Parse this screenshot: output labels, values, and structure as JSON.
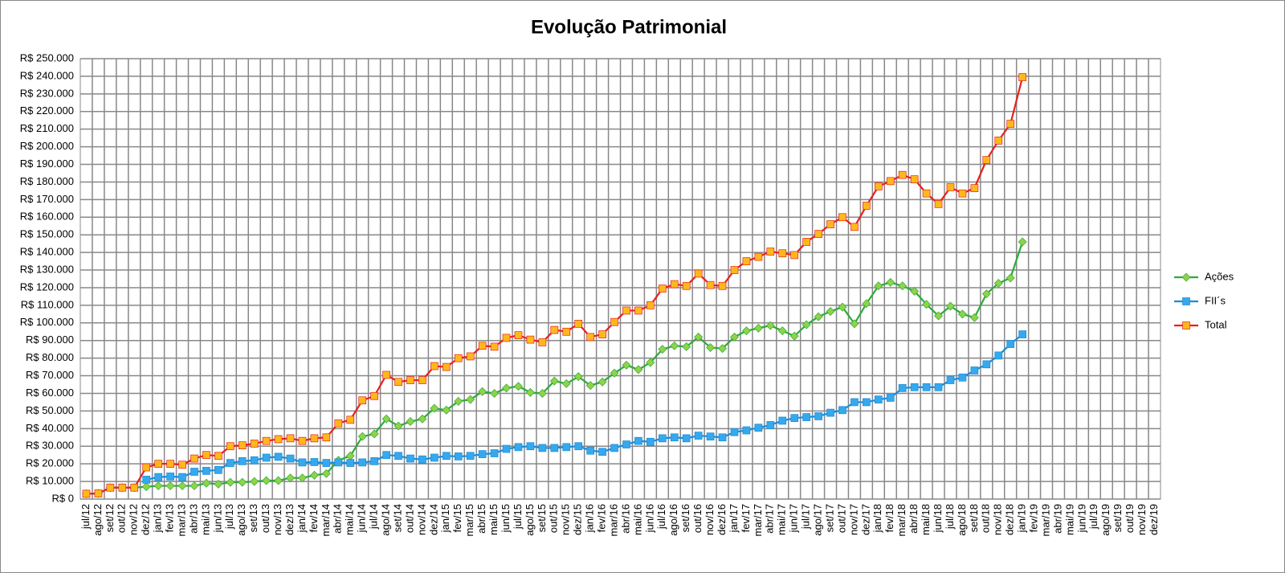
{
  "chart_data": {
    "type": "line",
    "title": "Evolução Patrimonial",
    "categories": [
      "jul/12",
      "ago/12",
      "set/12",
      "out/12",
      "nov/12",
      "dez/12",
      "jan/13",
      "fev/13",
      "mar/13",
      "abr/13",
      "mai/13",
      "jun/13",
      "jul/13",
      "ago/13",
      "set/13",
      "out/13",
      "nov/13",
      "dez/13",
      "jan/14",
      "fev/14",
      "mar/14",
      "abr/14",
      "mai/14",
      "jun/14",
      "jul/14",
      "ago/14",
      "set/14",
      "out/14",
      "nov/14",
      "dez/14",
      "jan/15",
      "fev/15",
      "mar/15",
      "abr/15",
      "mai/15",
      "jun/15",
      "jul/15",
      "ago/15",
      "set/15",
      "out/15",
      "nov/15",
      "dez/15",
      "jan/16",
      "fev/16",
      "mar/16",
      "abr/16",
      "mai/16",
      "jun/16",
      "jul/16",
      "ago/16",
      "set/16",
      "out/16",
      "nov/16",
      "dez/16",
      "jan/17",
      "fev/17",
      "mar/17",
      "abr/17",
      "mai/17",
      "jun/17",
      "jul/17",
      "ago/17",
      "set/17",
      "out/17",
      "nov/17",
      "dez/17",
      "jan/18",
      "fev/18",
      "mar/18",
      "abr/18",
      "mai/18",
      "jun/18",
      "jul/18",
      "ago/18",
      "set/18",
      "out/18",
      "nov/18",
      "dez/18",
      "jan/19",
      "fev/19",
      "mar/19",
      "abr/19",
      "mai/19",
      "jun/19",
      "jul/19",
      "ago/19",
      "set/19",
      "out/19",
      "nov/19",
      "dez/19"
    ],
    "series": [
      {
        "name": "Ações",
        "color": "#2eaa3a",
        "marker_color": "#8ed34a",
        "marker": "diamond",
        "values": [
          3000,
          3200,
          6500,
          6500,
          6500,
          7000,
          7500,
          7500,
          7500,
          7500,
          9000,
          8500,
          9500,
          9500,
          10000,
          10500,
          10500,
          12000,
          12000,
          13500,
          14500,
          22000,
          24500,
          35500,
          37000,
          45500,
          41500,
          44000,
          45500,
          51500,
          50500,
          55500,
          56500,
          61000,
          60000,
          63000,
          64000,
          60500,
          60000,
          67000,
          65500,
          69500,
          64500,
          66500,
          71500,
          76000,
          73500,
          77500,
          85000,
          87000,
          86500,
          92000,
          86000,
          85500,
          92000,
          95500,
          97000,
          98500,
          95500,
          92500,
          99000,
          103500,
          106500,
          109000,
          99500,
          111000,
          121000,
          123000,
          121000,
          118000,
          110500,
          104000,
          109500,
          105000,
          103000,
          116500,
          122500,
          125500,
          146000,
          null,
          null,
          null,
          null,
          null,
          null,
          null,
          null,
          null,
          null,
          null
        ]
      },
      {
        "name": "FII´s",
        "color": "#1b8ad6",
        "marker_color": "#35a9ee",
        "marker": "square",
        "values": [
          null,
          null,
          null,
          null,
          null,
          11000,
          12500,
          12800,
          12500,
          15500,
          16000,
          16500,
          20500,
          21500,
          22000,
          23500,
          24000,
          23000,
          20800,
          21000,
          20500,
          20800,
          20500,
          20800,
          21500,
          25000,
          24500,
          23000,
          22500,
          23500,
          24500,
          24200,
          24500,
          25500,
          26000,
          28500,
          29500,
          30000,
          29000,
          29000,
          29500,
          30000,
          27500,
          26800,
          29000,
          31000,
          33000,
          32500,
          34500,
          35000,
          34500,
          36000,
          35500,
          35000,
          38000,
          39000,
          40500,
          42000,
          44500,
          46000,
          46500,
          47000,
          49000,
          50500,
          55000,
          55000,
          56500,
          57500,
          63000,
          63500,
          63500,
          63500,
          67500,
          69000,
          73000,
          76500,
          81500,
          88000,
          93500,
          null,
          null,
          null,
          null,
          null,
          null,
          null,
          null,
          null,
          null,
          null
        ]
      },
      {
        "name": "Total",
        "color": "#e8201c",
        "marker_color": "#ffb81c",
        "marker": "square",
        "values": [
          3000,
          3200,
          6500,
          6500,
          6500,
          18000,
          20000,
          20000,
          19500,
          23000,
          25000,
          24500,
          30000,
          30500,
          31500,
          33000,
          34000,
          34500,
          33000,
          34500,
          35000,
          43000,
          45000,
          56000,
          58500,
          70500,
          66500,
          67500,
          67500,
          75500,
          75000,
          80000,
          81000,
          87000,
          86500,
          91500,
          93000,
          90500,
          89000,
          96000,
          95000,
          99500,
          92000,
          93500,
          100500,
          107000,
          107000,
          110000,
          119500,
          122000,
          121000,
          128000,
          121500,
          121000,
          130000,
          135000,
          137500,
          140500,
          139500,
          138500,
          146000,
          150500,
          156000,
          160000,
          154500,
          166500,
          177500,
          180500,
          184000,
          181500,
          173500,
          167500,
          177000,
          173500,
          176500,
          192500,
          203500,
          213000,
          239500,
          null,
          null,
          null,
          null,
          null,
          null,
          null,
          null,
          null,
          null,
          null
        ]
      }
    ],
    "ylim": [
      0,
      250000
    ],
    "yticks": [
      {
        "value": 0,
        "label": "R$ 0"
      },
      {
        "value": 10000,
        "label": "R$ 10.000"
      },
      {
        "value": 20000,
        "label": "R$ 20.000"
      },
      {
        "value": 30000,
        "label": "R$ 30.000"
      },
      {
        "value": 40000,
        "label": "R$ 40.000"
      },
      {
        "value": 50000,
        "label": "R$ 50.000"
      },
      {
        "value": 60000,
        "label": "R$ 60.000"
      },
      {
        "value": 70000,
        "label": "R$ 70.000"
      },
      {
        "value": 80000,
        "label": "R$ 80.000"
      },
      {
        "value": 90000,
        "label": "R$ 90.000"
      },
      {
        "value": 100000,
        "label": "R$ 100.000"
      },
      {
        "value": 110000,
        "label": "R$ 110.000"
      },
      {
        "value": 120000,
        "label": "R$ 120.000"
      },
      {
        "value": 130000,
        "label": "R$ 130.000"
      },
      {
        "value": 140000,
        "label": "R$ 140.000"
      },
      {
        "value": 150000,
        "label": "R$ 150.000"
      },
      {
        "value": 160000,
        "label": "R$ 160.000"
      },
      {
        "value": 170000,
        "label": "R$ 170.000"
      },
      {
        "value": 180000,
        "label": "R$ 180.000"
      },
      {
        "value": 190000,
        "label": "R$ 190.000"
      },
      {
        "value": 200000,
        "label": "R$ 200.000"
      },
      {
        "value": 210000,
        "label": "R$ 210.000"
      },
      {
        "value": 220000,
        "label": "R$ 220.000"
      },
      {
        "value": 230000,
        "label": "R$ 230.000"
      },
      {
        "value": 240000,
        "label": "R$ 240.000"
      },
      {
        "value": 250000,
        "label": "R$ 250.000"
      }
    ],
    "grid": true,
    "legend": "right"
  }
}
